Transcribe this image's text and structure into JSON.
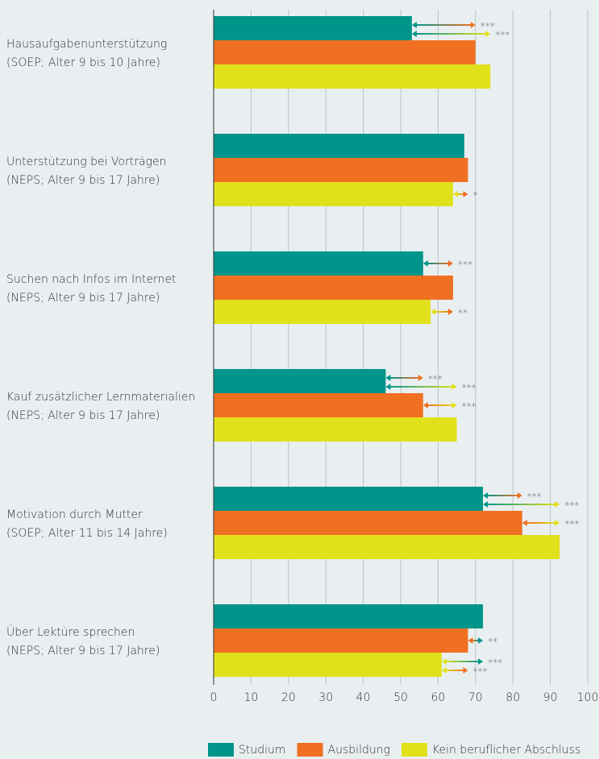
{
  "chart_data": {
    "type": "bar",
    "orientation": "horizontal",
    "categories": [
      "Hausaufgabenunterstützung",
      "Unterstützung bei Vorträgen",
      "Suchen nach Infos im Internet",
      "Kauf zusätzlicher Lernmaterialien",
      "Motivation durch Mutter",
      "Über Lektüre sprechen"
    ],
    "category_notes": [
      "(SOEP; Alter 9 bis 10 Jahre)",
      "(NEPS; Alter 9 bis 17 Jahre)",
      "(NEPS; Alter 9 bis 17 Jahre)",
      "(NEPS; Alter 9 bis 17 Jahre)",
      "(SOEP; Alter 11 bis 14 Jahre)",
      "(NEPS; Alter 9 bis 17 Jahre)"
    ],
    "series": [
      {
        "name": "Studium",
        "color": "#00958a",
        "values": [
          53,
          67,
          56,
          46,
          72,
          72
        ]
      },
      {
        "name": "Ausbildung",
        "color": "#f07022",
        "values": [
          70,
          68,
          64,
          56,
          82.5,
          68
        ]
      },
      {
        "name": "Kein beruflicher Abschluss",
        "color": "#e1e11b",
        "values": [
          74,
          64,
          58,
          65,
          92.5,
          61
        ]
      }
    ],
    "comparisons": [
      {
        "category": 0,
        "from": 0,
        "to": 1,
        "label": "***"
      },
      {
        "category": 0,
        "from": 0,
        "to": 2,
        "label": "***"
      },
      {
        "category": 1,
        "from": 2,
        "to": 1,
        "label": "*"
      },
      {
        "category": 2,
        "from": 0,
        "to": 1,
        "label": "***"
      },
      {
        "category": 2,
        "from": 2,
        "to": 1,
        "label": "**"
      },
      {
        "category": 3,
        "from": 0,
        "to": 1,
        "label": "***"
      },
      {
        "category": 3,
        "from": 0,
        "to": 2,
        "label": "***"
      },
      {
        "category": 3,
        "from": 1,
        "to": 2,
        "label": "***"
      },
      {
        "category": 4,
        "from": 0,
        "to": 1,
        "label": "***"
      },
      {
        "category": 4,
        "from": 0,
        "to": 2,
        "label": "***"
      },
      {
        "category": 4,
        "from": 1,
        "to": 2,
        "label": "***"
      },
      {
        "category": 5,
        "from": 1,
        "to": 0,
        "label": "**"
      },
      {
        "category": 5,
        "from": 2,
        "to": 0,
        "label": "***"
      },
      {
        "category": 5,
        "from": 2,
        "to": 1,
        "label": "***"
      }
    ],
    "xlim": [
      0,
      100
    ],
    "xticks": [
      0,
      10,
      20,
      30,
      40,
      50,
      60,
      70,
      80,
      90,
      100
    ],
    "grid": true,
    "legend": "bottom"
  }
}
